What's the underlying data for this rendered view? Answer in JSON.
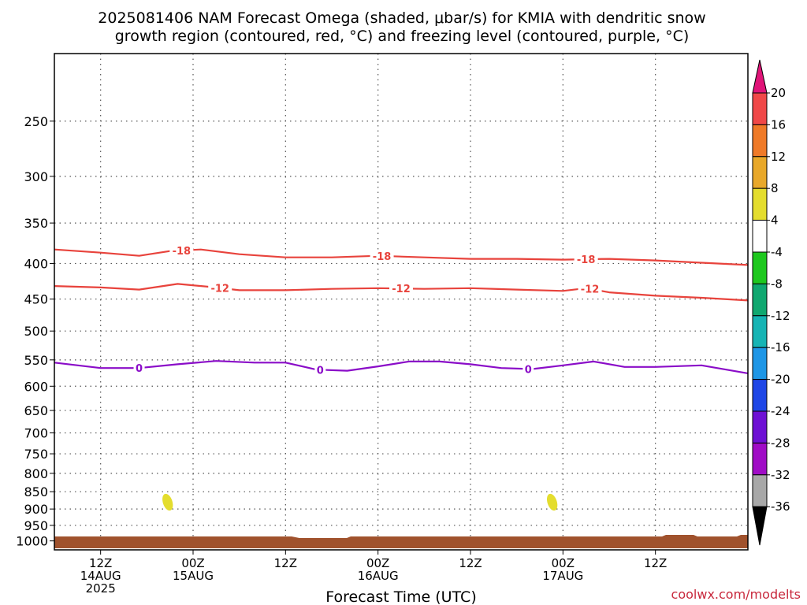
{
  "chart_data": {
    "type": "contour",
    "title_line1": "2025081406 NAM Forecast Omega (shaded, μbar/s) for KMIA with dendritic snow",
    "title_line2": "growth region (contoured, red, °C) and freezing level (contoured, purple, °C)",
    "xlabel": "Forecast Time (UTC)",
    "ylabel": "",
    "credit": "coolwx.com/modelts",
    "xlim_hours": [
      -6,
      84
    ],
    "ylim_pressure": [
      200,
      1030
    ],
    "y_scale": "log-pressure",
    "grid": true,
    "y_ticks": [
      250,
      300,
      350,
      400,
      450,
      500,
      550,
      600,
      650,
      700,
      750,
      800,
      850,
      900,
      950,
      1000
    ],
    "x_ticks": [
      {
        "h": 0,
        "lines": [
          "12Z",
          "14AUG",
          "2025"
        ]
      },
      {
        "h": 12,
        "lines": [
          "00Z",
          "15AUG"
        ]
      },
      {
        "h": 24,
        "lines": [
          "12Z"
        ]
      },
      {
        "h": 36,
        "lines": [
          "00Z",
          "16AUG"
        ]
      },
      {
        "h": 48,
        "lines": [
          "12Z"
        ]
      },
      {
        "h": 60,
        "lines": [
          "00Z",
          "17AUG"
        ]
      },
      {
        "h": 72,
        "lines": [
          "12Z"
        ]
      }
    ],
    "series": [
      {
        "name": "-18",
        "color": "#e8433c",
        "x": [
          -6,
          0,
          5,
          9,
          13,
          18,
          24,
          30,
          36,
          42,
          48,
          54,
          60,
          66,
          72,
          78,
          84
        ],
        "y": [
          382,
          386,
          390,
          384,
          382,
          388,
          392,
          392,
          390,
          392,
          394,
          394,
          395,
          394,
          396,
          399,
          402
        ],
        "labels": [
          {
            "x": 10.5,
            "text": "-18"
          },
          {
            "x": 36.5,
            "text": "-18"
          },
          {
            "x": 63,
            "text": "-18"
          }
        ]
      },
      {
        "name": "-12",
        "color": "#e8433c",
        "x": [
          -6,
          0,
          5,
          10,
          14,
          18,
          24,
          30,
          36,
          42,
          48,
          54,
          60,
          63,
          66,
          72,
          78,
          84
        ],
        "y": [
          431,
          433,
          436,
          428,
          432,
          437,
          437,
          435,
          434,
          435,
          434,
          436,
          438,
          434,
          440,
          445,
          448,
          452
        ],
        "labels": [
          {
            "x": 15.5,
            "text": "-12"
          },
          {
            "x": 39,
            "text": "-12"
          },
          {
            "x": 63.5,
            "text": "-12"
          }
        ]
      },
      {
        "name": "0",
        "color": "#8a0cc8",
        "x": [
          -6,
          0,
          5,
          10,
          15,
          20,
          24,
          28,
          32,
          36,
          40,
          44,
          48,
          52,
          56,
          60,
          64,
          68,
          72,
          78,
          84
        ],
        "y": [
          555,
          565,
          565,
          558,
          552,
          555,
          555,
          568,
          570,
          562,
          553,
          553,
          558,
          565,
          567,
          560,
          553,
          563,
          563,
          560,
          575
        ],
        "labels": [
          {
            "x": 5,
            "text": "0"
          },
          {
            "x": 28.5,
            "text": "0"
          },
          {
            "x": 55.5,
            "text": "0"
          }
        ]
      }
    ],
    "shaded_omega": [
      {
        "x": 8.7,
        "p": 880,
        "value": 4
      },
      {
        "x": 58.6,
        "p": 880,
        "value": 4
      }
    ],
    "terrain_color": "#a0522d",
    "colorbar": {
      "levels": [
        "20",
        "16",
        "12",
        "8",
        "4",
        "-4",
        "-8",
        "-12",
        "-16",
        "-20",
        "-24",
        "-28",
        "-32",
        "-36"
      ],
      "colors": [
        "#f04848",
        "#ef7a28",
        "#e8a82a",
        "#e4dd2e",
        "#ffffff",
        "#1ec81e",
        "#10a870",
        "#16b4b4",
        "#1e96e6",
        "#1e46e6",
        "#6e10d4",
        "#a00cc6",
        "#a8a8a8"
      ],
      "top_color": "#e01478",
      "bottom_color": "#000000"
    }
  }
}
